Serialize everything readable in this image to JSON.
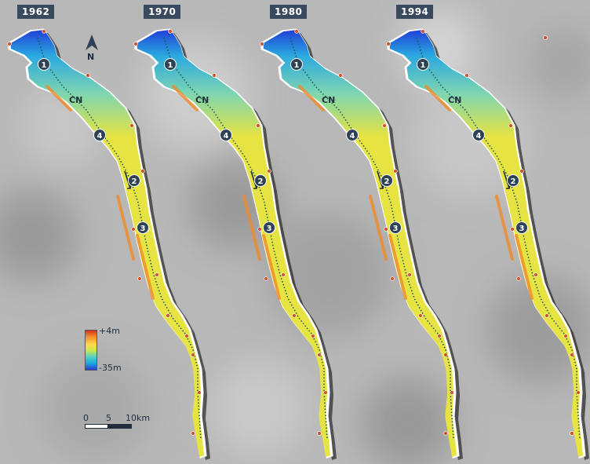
{
  "panels": [
    {
      "year": "1962",
      "ends_blue": false
    },
    {
      "year": "1970",
      "ends_blue": false
    },
    {
      "year": "1980",
      "ends_blue": true
    },
    {
      "year": "1994",
      "ends_blue": true
    }
  ],
  "markers": {
    "m1": "1",
    "m2": "2",
    "m3": "3",
    "m4": "4"
  },
  "channel_label": "CN",
  "north": {
    "label": "N"
  },
  "legend": {
    "max": "+4m",
    "min": "-35m"
  },
  "scalebar": {
    "labels": [
      "0",
      "5",
      "10km"
    ]
  },
  "colors": {
    "badge": "#3a4a5e",
    "estuary": "#e6e342",
    "deep": "#1f3fd8",
    "channel_dots": "#1e5c4a",
    "marker": "#2e4256",
    "edge_dot": "#d2542a"
  }
}
